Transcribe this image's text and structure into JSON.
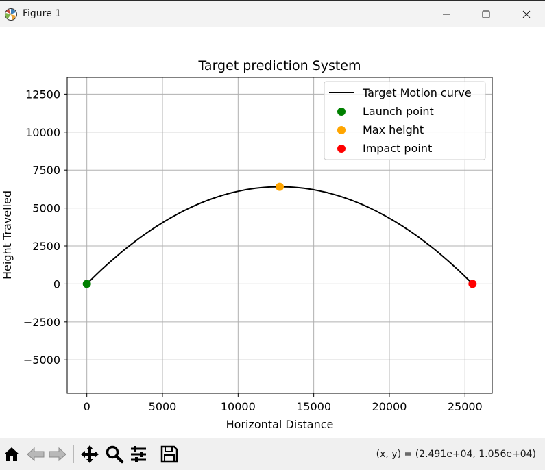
{
  "window": {
    "title": "Figure 1"
  },
  "chart_data": {
    "type": "line",
    "title": "Target prediction System",
    "xlabel": "Horizontal Distance",
    "ylabel": "Height Travelled",
    "xlim": [
      -1300,
      26800
    ],
    "ylim": [
      -7200,
      13600
    ],
    "xticks": [
      0,
      5000,
      10000,
      15000,
      20000,
      25000
    ],
    "xtick_labels": [
      "0",
      "5000",
      "10000",
      "15000",
      "20000",
      "25000"
    ],
    "yticks": [
      -5000,
      -2500,
      0,
      2500,
      5000,
      7500,
      10000,
      12500
    ],
    "ytick_labels": [
      "−5000",
      "−2500",
      "0",
      "2500",
      "5000",
      "7500",
      "10000",
      "12500"
    ],
    "grid": true,
    "legend_position": "upper right",
    "series": [
      {
        "name": "Target Motion curve",
        "kind": "line",
        "color": "#000000",
        "x_start": 0,
        "x_end": 25500,
        "peak_x": 12750,
        "peak_y": 6400
      },
      {
        "name": "Launch point",
        "kind": "scatter",
        "color": "#008000",
        "x": [
          0
        ],
        "y": [
          0
        ]
      },
      {
        "name": "Max height",
        "kind": "scatter",
        "color": "#ffa500",
        "x": [
          12750
        ],
        "y": [
          6400
        ]
      },
      {
        "name": "Impact point",
        "kind": "scatter",
        "color": "#ff0000",
        "x": [
          25500
        ],
        "y": [
          0
        ]
      }
    ]
  },
  "toolbar": {
    "buttons": [
      "home-icon",
      "back-icon",
      "forward-icon",
      "pan-icon",
      "zoom-icon",
      "configure-subplots-icon",
      "save-icon"
    ],
    "coords": "(x, y) = (2.491e+04, 1.056e+04)"
  }
}
